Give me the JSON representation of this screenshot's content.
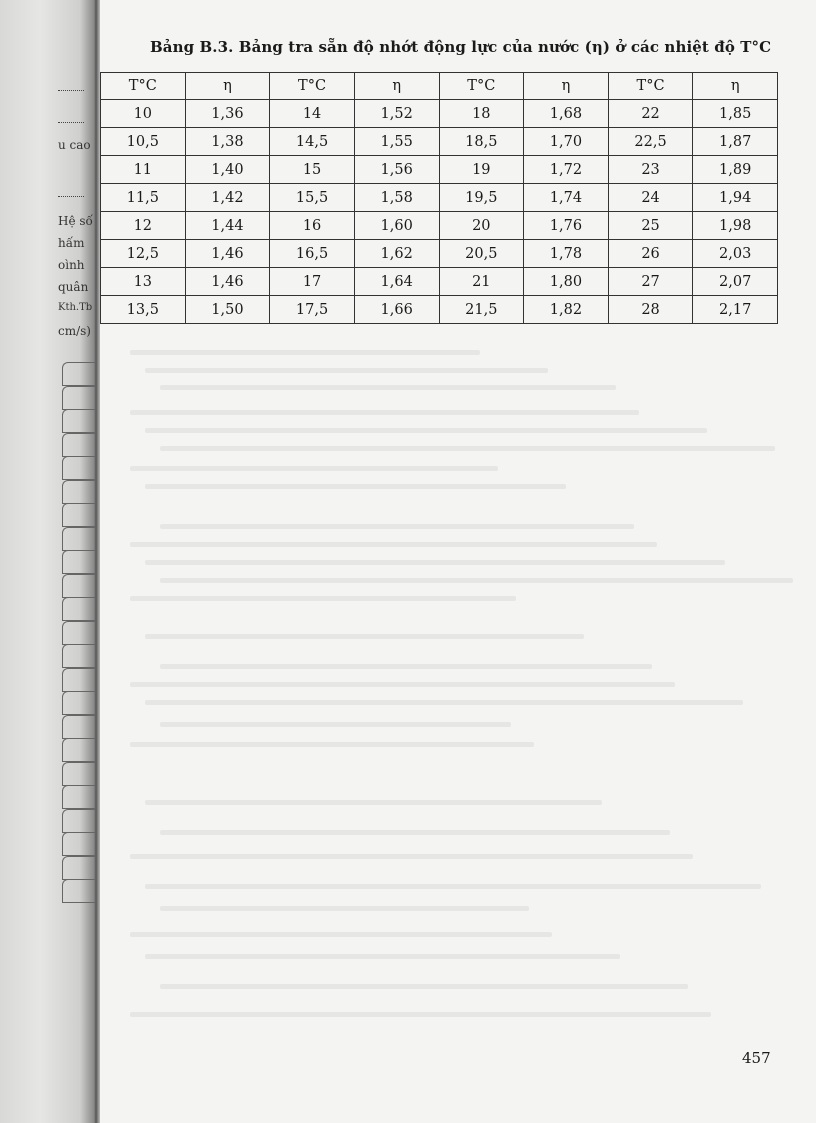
{
  "title": "Bảng B.3. Bảng tra sẵn độ nhớt động lực của nước (η) ở các nhiệt độ T°C",
  "table": {
    "headers": [
      "T°C",
      "η",
      "T°C",
      "η",
      "T°C",
      "η",
      "T°C",
      "η"
    ],
    "rows": [
      [
        "10",
        "1,36",
        "14",
        "1,52",
        "18",
        "1,68",
        "22",
        "1,85"
      ],
      [
        "10,5",
        "1,38",
        "14,5",
        "1,55",
        "18,5",
        "1,70",
        "22,5",
        "1,87"
      ],
      [
        "11",
        "1,40",
        "15",
        "1,56",
        "19",
        "1,72",
        "23",
        "1,89"
      ],
      [
        "11,5",
        "1,42",
        "15,5",
        "1,58",
        "19,5",
        "1,74",
        "24",
        "1,94"
      ],
      [
        "12",
        "1,44",
        "16",
        "1,60",
        "20",
        "1,76",
        "25",
        "1,98"
      ],
      [
        "12,5",
        "1,46",
        "16,5",
        "1,62",
        "20,5",
        "1,78",
        "26",
        "2,03"
      ],
      [
        "13",
        "1,46",
        "17",
        "1,64",
        "21",
        "1,80",
        "27",
        "2,07"
      ],
      [
        "13,5",
        "1,50",
        "17,5",
        "1,66",
        "21,5",
        "1,82",
        "28",
        "2,17"
      ]
    ]
  },
  "margin_fragments": [
    "u cao",
    "Hệ số",
    "hấm",
    "oình",
    "quân",
    "Kth.Tb",
    "cm/s)"
  ],
  "page_number": "457"
}
